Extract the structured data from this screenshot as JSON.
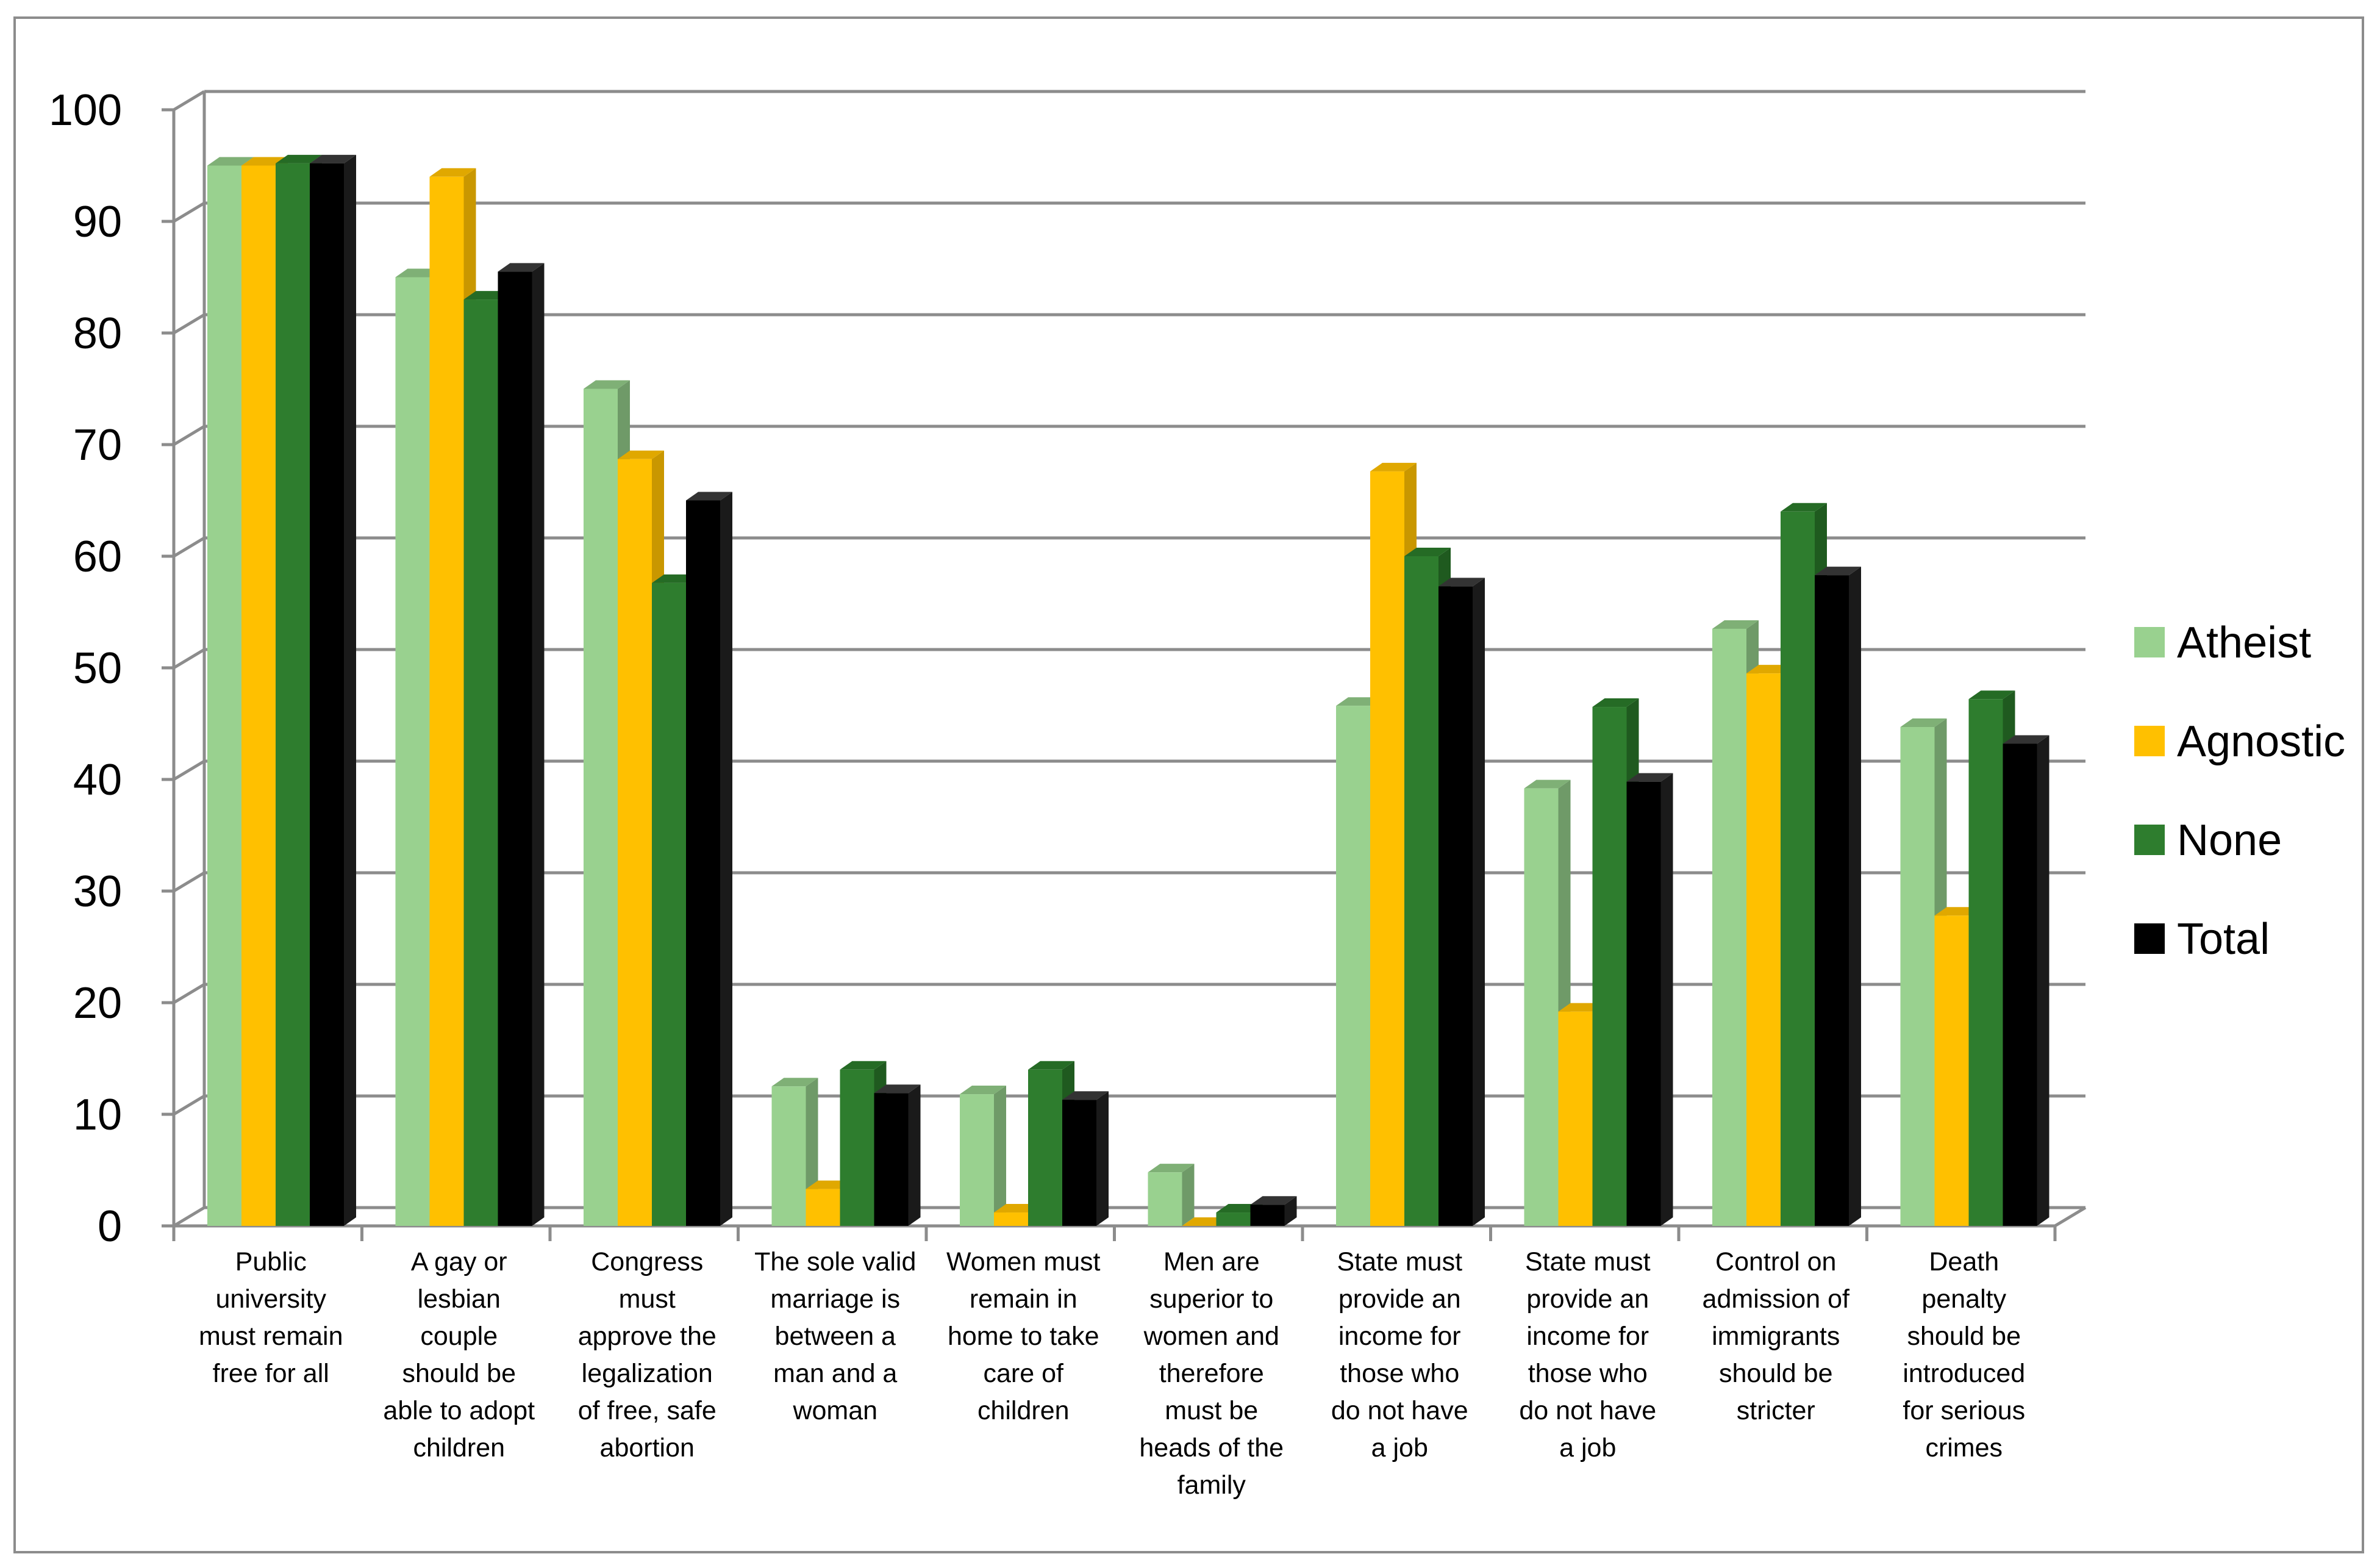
{
  "chart_data": {
    "type": "bar",
    "title": "",
    "xlabel": "",
    "ylabel": "",
    "ylim": [
      0,
      100
    ],
    "yticks": [
      "0",
      "10",
      "20",
      "30",
      "40",
      "50",
      "60",
      "70",
      "80",
      "90",
      "100"
    ],
    "legend_position": "right",
    "categories": [
      [
        "Public",
        "university",
        "must remain",
        "free for all"
      ],
      [
        "A gay or",
        "lesbian",
        "couple",
        "should be",
        "able to adopt",
        "children"
      ],
      [
        "Congress",
        "must",
        "approve the",
        "legalization",
        "of free, safe",
        "abortion"
      ],
      [
        "The sole valid",
        "marriage is",
        "between a",
        "man and a",
        "woman"
      ],
      [
        "Women must",
        "remain in",
        "home to take",
        "care of",
        "children"
      ],
      [
        "Men are",
        "superior to",
        "women and",
        "therefore",
        "must be",
        "heads of the",
        "family"
      ],
      [
        "State must",
        "provide an",
        "income for",
        "those who",
        "do not have",
        "a job"
      ],
      [
        "State must",
        "provide an",
        "income for",
        "those who",
        "do not have",
        "a job"
      ],
      [
        "Control on",
        "admission of",
        "immigrants",
        "should be",
        "stricter"
      ],
      [
        "Death",
        "penalty",
        "should be",
        "introduced",
        "for serious",
        "crimes"
      ]
    ],
    "series": [
      {
        "name": "Atheist",
        "color": "#99d18f",
        "side": "#6f9a68",
        "top": "#7fb076",
        "values": [
          95,
          85,
          75,
          12.5,
          11.8,
          4.8,
          46.6,
          39.2,
          53.5,
          44.7
        ]
      },
      {
        "name": "Agnostic",
        "color": "#ffc000",
        "side": "#c99700",
        "top": "#e0a800",
        "values": [
          95,
          94,
          68.7,
          3.3,
          1.2,
          0,
          67.6,
          19.2,
          49.5,
          27.8
        ]
      },
      {
        "name": "None",
        "color": "#2e7d2e",
        "side": "#1f5a1f",
        "top": "#256b25",
        "values": [
          95.2,
          83,
          57.6,
          14,
          14,
          1.2,
          60,
          46.5,
          64,
          47.2
        ]
      },
      {
        "name": "Total",
        "color": "#000000",
        "side": "#1a1a1a",
        "top": "#333333",
        "values": [
          95.2,
          85.5,
          65,
          11.9,
          11.3,
          1.9,
          57.3,
          39.8,
          58.3,
          43.2
        ]
      }
    ]
  }
}
